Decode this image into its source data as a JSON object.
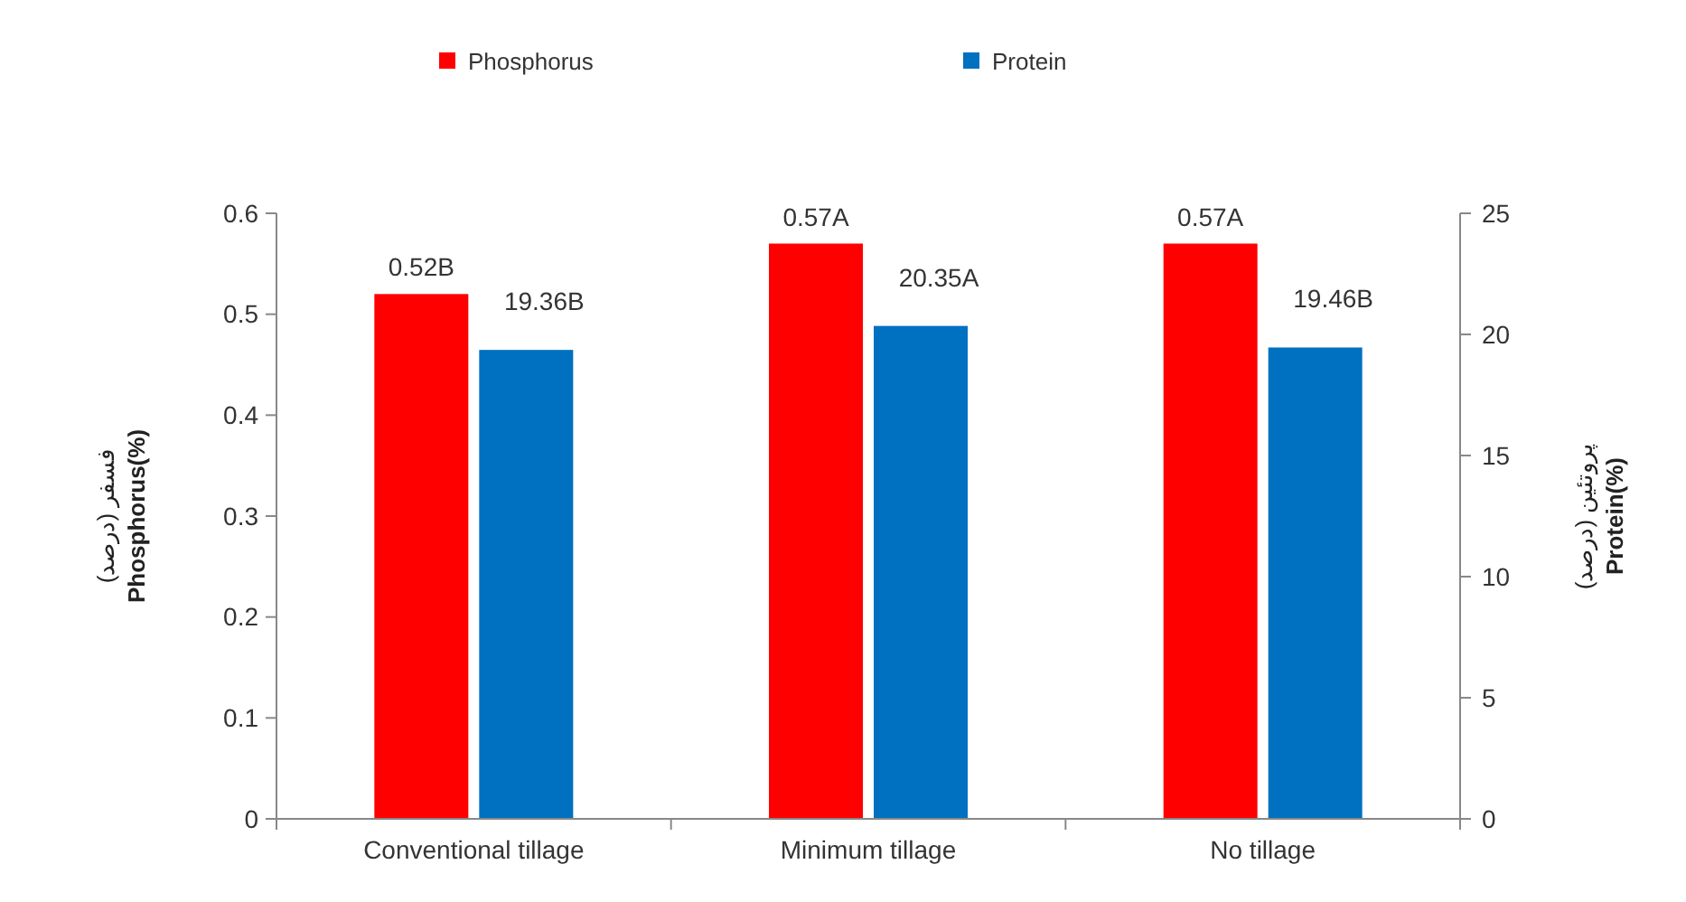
{
  "chart_data": {
    "type": "bar",
    "categories": [
      "Conventional tillage",
      "Minimum tillage",
      "No tillage"
    ],
    "series": [
      {
        "name": "Phosphorus",
        "color": "#ff0000",
        "values": [
          0.52,
          0.57,
          0.57
        ],
        "value_labels": [
          "0.52B",
          "0.57A",
          "0.57A"
        ]
      },
      {
        "name": "Protein",
        "color": "#0070c0",
        "values": [
          19.36,
          20.35,
          19.46
        ],
        "value_labels": [
          "19.36B",
          "20.35A",
          "19.46B"
        ],
        "axis": "y2"
      }
    ],
    "ylabel": "فسفر (درصد)\nPhosphorus(%)",
    "y2label": "پروتئین (درصد)\nProtein(%)",
    "ylim": [
      0,
      0.6
    ],
    "yticks": [
      0,
      0.1,
      0.2,
      0.3,
      0.4,
      0.5,
      0.6
    ],
    "y2lim": [
      0,
      25
    ],
    "y2ticks": [
      0,
      5,
      10,
      15,
      20,
      25
    ],
    "legend": "top",
    "grid": false
  }
}
